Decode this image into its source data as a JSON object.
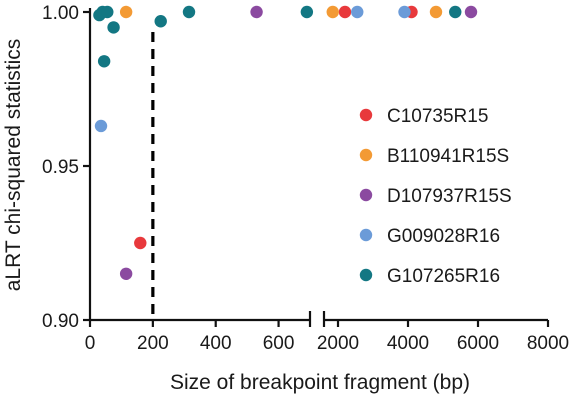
{
  "chart_data": {
    "type": "scatter",
    "xlabel": "Size of breakpoint fragment (bp)",
    "ylabel": "aLRT chi-squared statistics",
    "ylim": [
      0.9,
      1.0
    ],
    "x_axis_break": true,
    "x_segments": [
      {
        "range": [
          0,
          700
        ],
        "ticks": [
          0,
          200,
          400,
          600
        ],
        "tick_labels": [
          "0",
          "200",
          "400",
          "600"
        ]
      },
      {
        "range": [
          1600,
          8000
        ],
        "ticks": [
          2000,
          4000,
          6000,
          8000
        ],
        "tick_labels": [
          "2000",
          "4000",
          "6000",
          "8000"
        ]
      }
    ],
    "y_ticks": [
      0.9,
      0.95,
      1.0
    ],
    "y_tick_labels": [
      "0.90",
      "0.95",
      "1.00"
    ],
    "reference_line": {
      "x": 200,
      "style": "dashed"
    },
    "legend_position": "right",
    "series": [
      {
        "name": "C10735R15",
        "color": "#e8393c",
        "points": [
          [
            160,
            0.925
          ],
          [
            2200,
            1.0
          ],
          [
            4100,
            1.0
          ]
        ]
      },
      {
        "name": "B110941R15S",
        "color": "#f39a34",
        "points": [
          [
            115,
            1.0
          ],
          [
            1850,
            1.0
          ],
          [
            4800,
            1.0
          ]
        ]
      },
      {
        "name": "D107937R15S",
        "color": "#8b4aa0",
        "points": [
          [
            115,
            0.915
          ],
          [
            530,
            1.0
          ],
          [
            5800,
            1.0
          ]
        ]
      },
      {
        "name": "G009028R16",
        "color": "#6b9bd8",
        "points": [
          [
            35,
            0.963
          ],
          [
            2550,
            1.0
          ],
          [
            3900,
            1.0
          ]
        ]
      },
      {
        "name": "G107265R16",
        "color": "#137783",
        "points": [
          [
            30,
            0.999
          ],
          [
            40,
            1.0
          ],
          [
            55,
            1.0
          ],
          [
            75,
            0.995
          ],
          [
            45,
            0.984
          ],
          [
            225,
            0.997
          ],
          [
            315,
            1.0
          ],
          [
            690,
            1.0
          ],
          [
            5350,
            1.0
          ]
        ]
      }
    ]
  }
}
